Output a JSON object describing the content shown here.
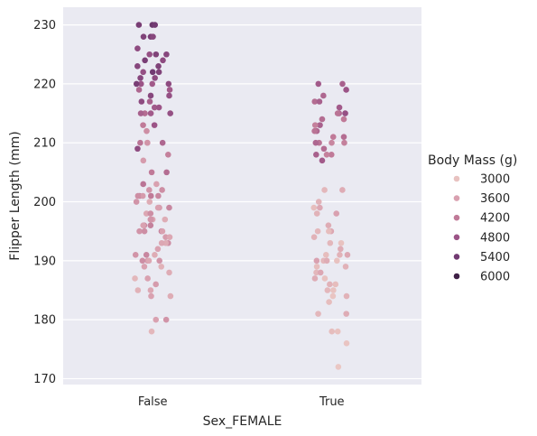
{
  "chart_data": {
    "type": "scatter",
    "subtype": "strip",
    "title": "",
    "xlabel": "Sex_FEMALE",
    "ylabel": "Flipper Length (mm)",
    "categories": [
      "False",
      "True"
    ],
    "ylim": [
      169,
      233
    ],
    "yticks": [
      170,
      180,
      190,
      200,
      210,
      220,
      230
    ],
    "grid": true,
    "legend": {
      "title": "Body Mass (g)",
      "position": "right",
      "entries": [
        {
          "label": "3000",
          "color": "#e8c2c0"
        },
        {
          "label": "3600",
          "color": "#d9a1b0"
        },
        {
          "label": "4200",
          "color": "#c07a98"
        },
        {
          "label": "4800",
          "color": "#9c5487"
        },
        {
          "label": "5400",
          "color": "#723a72"
        },
        {
          "label": "6000",
          "color": "#3f2046"
        }
      ]
    },
    "color_scale": {
      "min": 2700,
      "max": 6300,
      "colors": [
        "#efd0cc",
        "#e8c2c0",
        "#d9a1b0",
        "#c07a98",
        "#9c5487",
        "#723a72",
        "#3f2046"
      ]
    },
    "points": [
      {
        "cat": "False",
        "y": 230,
        "mass": 5800
      },
      {
        "cat": "False",
        "y": 230,
        "mass": 5700
      },
      {
        "cat": "False",
        "y": 230,
        "mass": 5600
      },
      {
        "cat": "False",
        "y": 228,
        "mass": 5500
      },
      {
        "cat": "False",
        "y": 228,
        "mass": 5600
      },
      {
        "cat": "False",
        "y": 228,
        "mass": 5400
      },
      {
        "cat": "False",
        "y": 226,
        "mass": 5300
      },
      {
        "cat": "False",
        "y": 225,
        "mass": 5400
      },
      {
        "cat": "False",
        "y": 225,
        "mass": 5500
      },
      {
        "cat": "False",
        "y": 225,
        "mass": 5200
      },
      {
        "cat": "False",
        "y": 224,
        "mass": 5600
      },
      {
        "cat": "False",
        "y": 224,
        "mass": 5300
      },
      {
        "cat": "False",
        "y": 223,
        "mass": 5500
      },
      {
        "cat": "False",
        "y": 223,
        "mass": 5400
      },
      {
        "cat": "False",
        "y": 222,
        "mass": 5700
      },
      {
        "cat": "False",
        "y": 222,
        "mass": 5200
      },
      {
        "cat": "False",
        "y": 222,
        "mass": 5500
      },
      {
        "cat": "False",
        "y": 221,
        "mass": 5400
      },
      {
        "cat": "False",
        "y": 221,
        "mass": 5300
      },
      {
        "cat": "False",
        "y": 220,
        "mass": 5000
      },
      {
        "cat": "False",
        "y": 220,
        "mass": 5100
      },
      {
        "cat": "False",
        "y": 220,
        "mass": 5600
      },
      {
        "cat": "False",
        "y": 220,
        "mass": 5300
      },
      {
        "cat": "False",
        "y": 219,
        "mass": 5000
      },
      {
        "cat": "False",
        "y": 219,
        "mass": 4800
      },
      {
        "cat": "False",
        "y": 218,
        "mass": 5400
      },
      {
        "cat": "False",
        "y": 218,
        "mass": 5200
      },
      {
        "cat": "False",
        "y": 217,
        "mass": 5300
      },
      {
        "cat": "False",
        "y": 217,
        "mass": 4900
      },
      {
        "cat": "False",
        "y": 216,
        "mass": 5000
      },
      {
        "cat": "False",
        "y": 216,
        "mass": 5100
      },
      {
        "cat": "False",
        "y": 215,
        "mass": 4700
      },
      {
        "cat": "False",
        "y": 215,
        "mass": 4900
      },
      {
        "cat": "False",
        "y": 215,
        "mass": 5200
      },
      {
        "cat": "False",
        "y": 215,
        "mass": 5000
      },
      {
        "cat": "False",
        "y": 213,
        "mass": 4500
      },
      {
        "cat": "False",
        "y": 213,
        "mass": 5100
      },
      {
        "cat": "False",
        "y": 212,
        "mass": 4200
      },
      {
        "cat": "False",
        "y": 210,
        "mass": 4600
      },
      {
        "cat": "False",
        "y": 210,
        "mass": 4800
      },
      {
        "cat": "False",
        "y": 210,
        "mass": 4300
      },
      {
        "cat": "False",
        "y": 210,
        "mass": 4100
      },
      {
        "cat": "False",
        "y": 209,
        "mass": 5300
      },
      {
        "cat": "False",
        "y": 208,
        "mass": 4400
      },
      {
        "cat": "False",
        "y": 207,
        "mass": 4000
      },
      {
        "cat": "False",
        "y": 205,
        "mass": 4700
      },
      {
        "cat": "False",
        "y": 205,
        "mass": 4500
      },
      {
        "cat": "False",
        "y": 203,
        "mass": 4600
      },
      {
        "cat": "False",
        "y": 203,
        "mass": 3900
      },
      {
        "cat": "False",
        "y": 202,
        "mass": 4100
      },
      {
        "cat": "False",
        "y": 202,
        "mass": 4200
      },
      {
        "cat": "False",
        "y": 201,
        "mass": 4300
      },
      {
        "cat": "False",
        "y": 201,
        "mass": 4400
      },
      {
        "cat": "False",
        "y": 201,
        "mass": 4000
      },
      {
        "cat": "False",
        "y": 201,
        "mass": 4500
      },
      {
        "cat": "False",
        "y": 201,
        "mass": 4200
      },
      {
        "cat": "False",
        "y": 200,
        "mass": 4100
      },
      {
        "cat": "False",
        "y": 200,
        "mass": 3700
      },
      {
        "cat": "False",
        "y": 199,
        "mass": 4000
      },
      {
        "cat": "False",
        "y": 199,
        "mass": 3900
      },
      {
        "cat": "False",
        "y": 199,
        "mass": 4300
      },
      {
        "cat": "False",
        "y": 198,
        "mass": 3800
      },
      {
        "cat": "False",
        "y": 198,
        "mass": 4200
      },
      {
        "cat": "False",
        "y": 197,
        "mass": 3800
      },
      {
        "cat": "False",
        "y": 197,
        "mass": 4000
      },
      {
        "cat": "False",
        "y": 197,
        "mass": 3700
      },
      {
        "cat": "False",
        "y": 197,
        "mass": 4100
      },
      {
        "cat": "False",
        "y": 196,
        "mass": 4400
      },
      {
        "cat": "False",
        "y": 196,
        "mass": 4300
      },
      {
        "cat": "False",
        "y": 196,
        "mass": 3900
      },
      {
        "cat": "False",
        "y": 195,
        "mass": 4500
      },
      {
        "cat": "False",
        "y": 195,
        "mass": 4100
      },
      {
        "cat": "False",
        "y": 195,
        "mass": 4200
      },
      {
        "cat": "False",
        "y": 195,
        "mass": 3900
      },
      {
        "cat": "False",
        "y": 194,
        "mass": 4000
      },
      {
        "cat": "False",
        "y": 194,
        "mass": 3800
      },
      {
        "cat": "False",
        "y": 193,
        "mass": 4200
      },
      {
        "cat": "False",
        "y": 193,
        "mass": 3700
      },
      {
        "cat": "False",
        "y": 193,
        "mass": 3800
      },
      {
        "cat": "False",
        "y": 192,
        "mass": 3900
      },
      {
        "cat": "False",
        "y": 191,
        "mass": 3700
      },
      {
        "cat": "False",
        "y": 191,
        "mass": 4100
      },
      {
        "cat": "False",
        "y": 191,
        "mass": 4300
      },
      {
        "cat": "False",
        "y": 190,
        "mass": 4000
      },
      {
        "cat": "False",
        "y": 190,
        "mass": 4200
      },
      {
        "cat": "False",
        "y": 190,
        "mass": 3800
      },
      {
        "cat": "False",
        "y": 190,
        "mass": 4100
      },
      {
        "cat": "False",
        "y": 189,
        "mass": 3600
      },
      {
        "cat": "False",
        "y": 189,
        "mass": 3900
      },
      {
        "cat": "False",
        "y": 188,
        "mass": 3700
      },
      {
        "cat": "False",
        "y": 187,
        "mass": 3500
      },
      {
        "cat": "False",
        "y": 187,
        "mass": 3900
      },
      {
        "cat": "False",
        "y": 186,
        "mass": 4000
      },
      {
        "cat": "False",
        "y": 185,
        "mass": 3800
      },
      {
        "cat": "False",
        "y": 185,
        "mass": 3600
      },
      {
        "cat": "False",
        "y": 184,
        "mass": 3700
      },
      {
        "cat": "False",
        "y": 184,
        "mass": 3900
      },
      {
        "cat": "False",
        "y": 180,
        "mass": 4100
      },
      {
        "cat": "False",
        "y": 180,
        "mass": 3900
      },
      {
        "cat": "False",
        "y": 178,
        "mass": 3500
      },
      {
        "cat": "True",
        "y": 220,
        "mass": 5000
      },
      {
        "cat": "True",
        "y": 220,
        "mass": 4900
      },
      {
        "cat": "True",
        "y": 219,
        "mass": 5100
      },
      {
        "cat": "True",
        "y": 218,
        "mass": 4800
      },
      {
        "cat": "True",
        "y": 217,
        "mass": 4700
      },
      {
        "cat": "True",
        "y": 217,
        "mass": 4900
      },
      {
        "cat": "True",
        "y": 216,
        "mass": 5000
      },
      {
        "cat": "True",
        "y": 215,
        "mass": 4800
      },
      {
        "cat": "True",
        "y": 215,
        "mass": 4600
      },
      {
        "cat": "True",
        "y": 215,
        "mass": 5200
      },
      {
        "cat": "True",
        "y": 214,
        "mass": 4700
      },
      {
        "cat": "True",
        "y": 214,
        "mass": 4500
      },
      {
        "cat": "True",
        "y": 213,
        "mass": 4900
      },
      {
        "cat": "True",
        "y": 213,
        "mass": 4400
      },
      {
        "cat": "True",
        "y": 212,
        "mass": 4800
      },
      {
        "cat": "True",
        "y": 212,
        "mass": 4600
      },
      {
        "cat": "True",
        "y": 211,
        "mass": 4500
      },
      {
        "cat": "True",
        "y": 211,
        "mass": 4700
      },
      {
        "cat": "True",
        "y": 210,
        "mass": 4400
      },
      {
        "cat": "True",
        "y": 210,
        "mass": 4600
      },
      {
        "cat": "True",
        "y": 210,
        "mass": 4300
      },
      {
        "cat": "True",
        "y": 210,
        "mass": 4800
      },
      {
        "cat": "True",
        "y": 209,
        "mass": 4700
      },
      {
        "cat": "True",
        "y": 208,
        "mass": 4500
      },
      {
        "cat": "True",
        "y": 208,
        "mass": 4900
      },
      {
        "cat": "True",
        "y": 208,
        "mass": 4400
      },
      {
        "cat": "True",
        "y": 207,
        "mass": 5000
      },
      {
        "cat": "True",
        "y": 202,
        "mass": 3500
      },
      {
        "cat": "True",
        "y": 202,
        "mass": 3700
      },
      {
        "cat": "True",
        "y": 200,
        "mass": 3600
      },
      {
        "cat": "True",
        "y": 199,
        "mass": 3800
      },
      {
        "cat": "True",
        "y": 199,
        "mass": 3400
      },
      {
        "cat": "True",
        "y": 198,
        "mass": 3900
      },
      {
        "cat": "True",
        "y": 198,
        "mass": 3600
      },
      {
        "cat": "True",
        "y": 196,
        "mass": 3700
      },
      {
        "cat": "True",
        "y": 195,
        "mass": 3500
      },
      {
        "cat": "True",
        "y": 195,
        "mass": 3800
      },
      {
        "cat": "True",
        "y": 195,
        "mass": 3400
      },
      {
        "cat": "True",
        "y": 194,
        "mass": 3600
      },
      {
        "cat": "True",
        "y": 193,
        "mass": 3300
      },
      {
        "cat": "True",
        "y": 193,
        "mass": 3500
      },
      {
        "cat": "True",
        "y": 192,
        "mass": 3700
      },
      {
        "cat": "True",
        "y": 191,
        "mass": 3400
      },
      {
        "cat": "True",
        "y": 191,
        "mass": 3800
      },
      {
        "cat": "True",
        "y": 191,
        "mass": 3600
      },
      {
        "cat": "True",
        "y": 190,
        "mass": 3300
      },
      {
        "cat": "True",
        "y": 190,
        "mass": 3500
      },
      {
        "cat": "True",
        "y": 190,
        "mass": 3700
      },
      {
        "cat": "True",
        "y": 190,
        "mass": 3900
      },
      {
        "cat": "True",
        "y": 189,
        "mass": 3600
      },
      {
        "cat": "True",
        "y": 189,
        "mass": 3400
      },
      {
        "cat": "True",
        "y": 188,
        "mass": 3500
      },
      {
        "cat": "True",
        "y": 188,
        "mass": 3800
      },
      {
        "cat": "True",
        "y": 187,
        "mass": 3300
      },
      {
        "cat": "True",
        "y": 187,
        "mass": 3700
      },
      {
        "cat": "True",
        "y": 186,
        "mass": 3400
      },
      {
        "cat": "True",
        "y": 186,
        "mass": 3600
      },
      {
        "cat": "True",
        "y": 185,
        "mass": 3500
      },
      {
        "cat": "True",
        "y": 185,
        "mass": 3300
      },
      {
        "cat": "True",
        "y": 184,
        "mass": 3600
      },
      {
        "cat": "True",
        "y": 184,
        "mass": 3200
      },
      {
        "cat": "True",
        "y": 183,
        "mass": 3400
      },
      {
        "cat": "True",
        "y": 181,
        "mass": 3500
      },
      {
        "cat": "True",
        "y": 181,
        "mass": 3700
      },
      {
        "cat": "True",
        "y": 178,
        "mass": 3300
      },
      {
        "cat": "True",
        "y": 178,
        "mass": 3400
      },
      {
        "cat": "True",
        "y": 176,
        "mass": 3200
      },
      {
        "cat": "True",
        "y": 172,
        "mass": 3100
      }
    ]
  }
}
